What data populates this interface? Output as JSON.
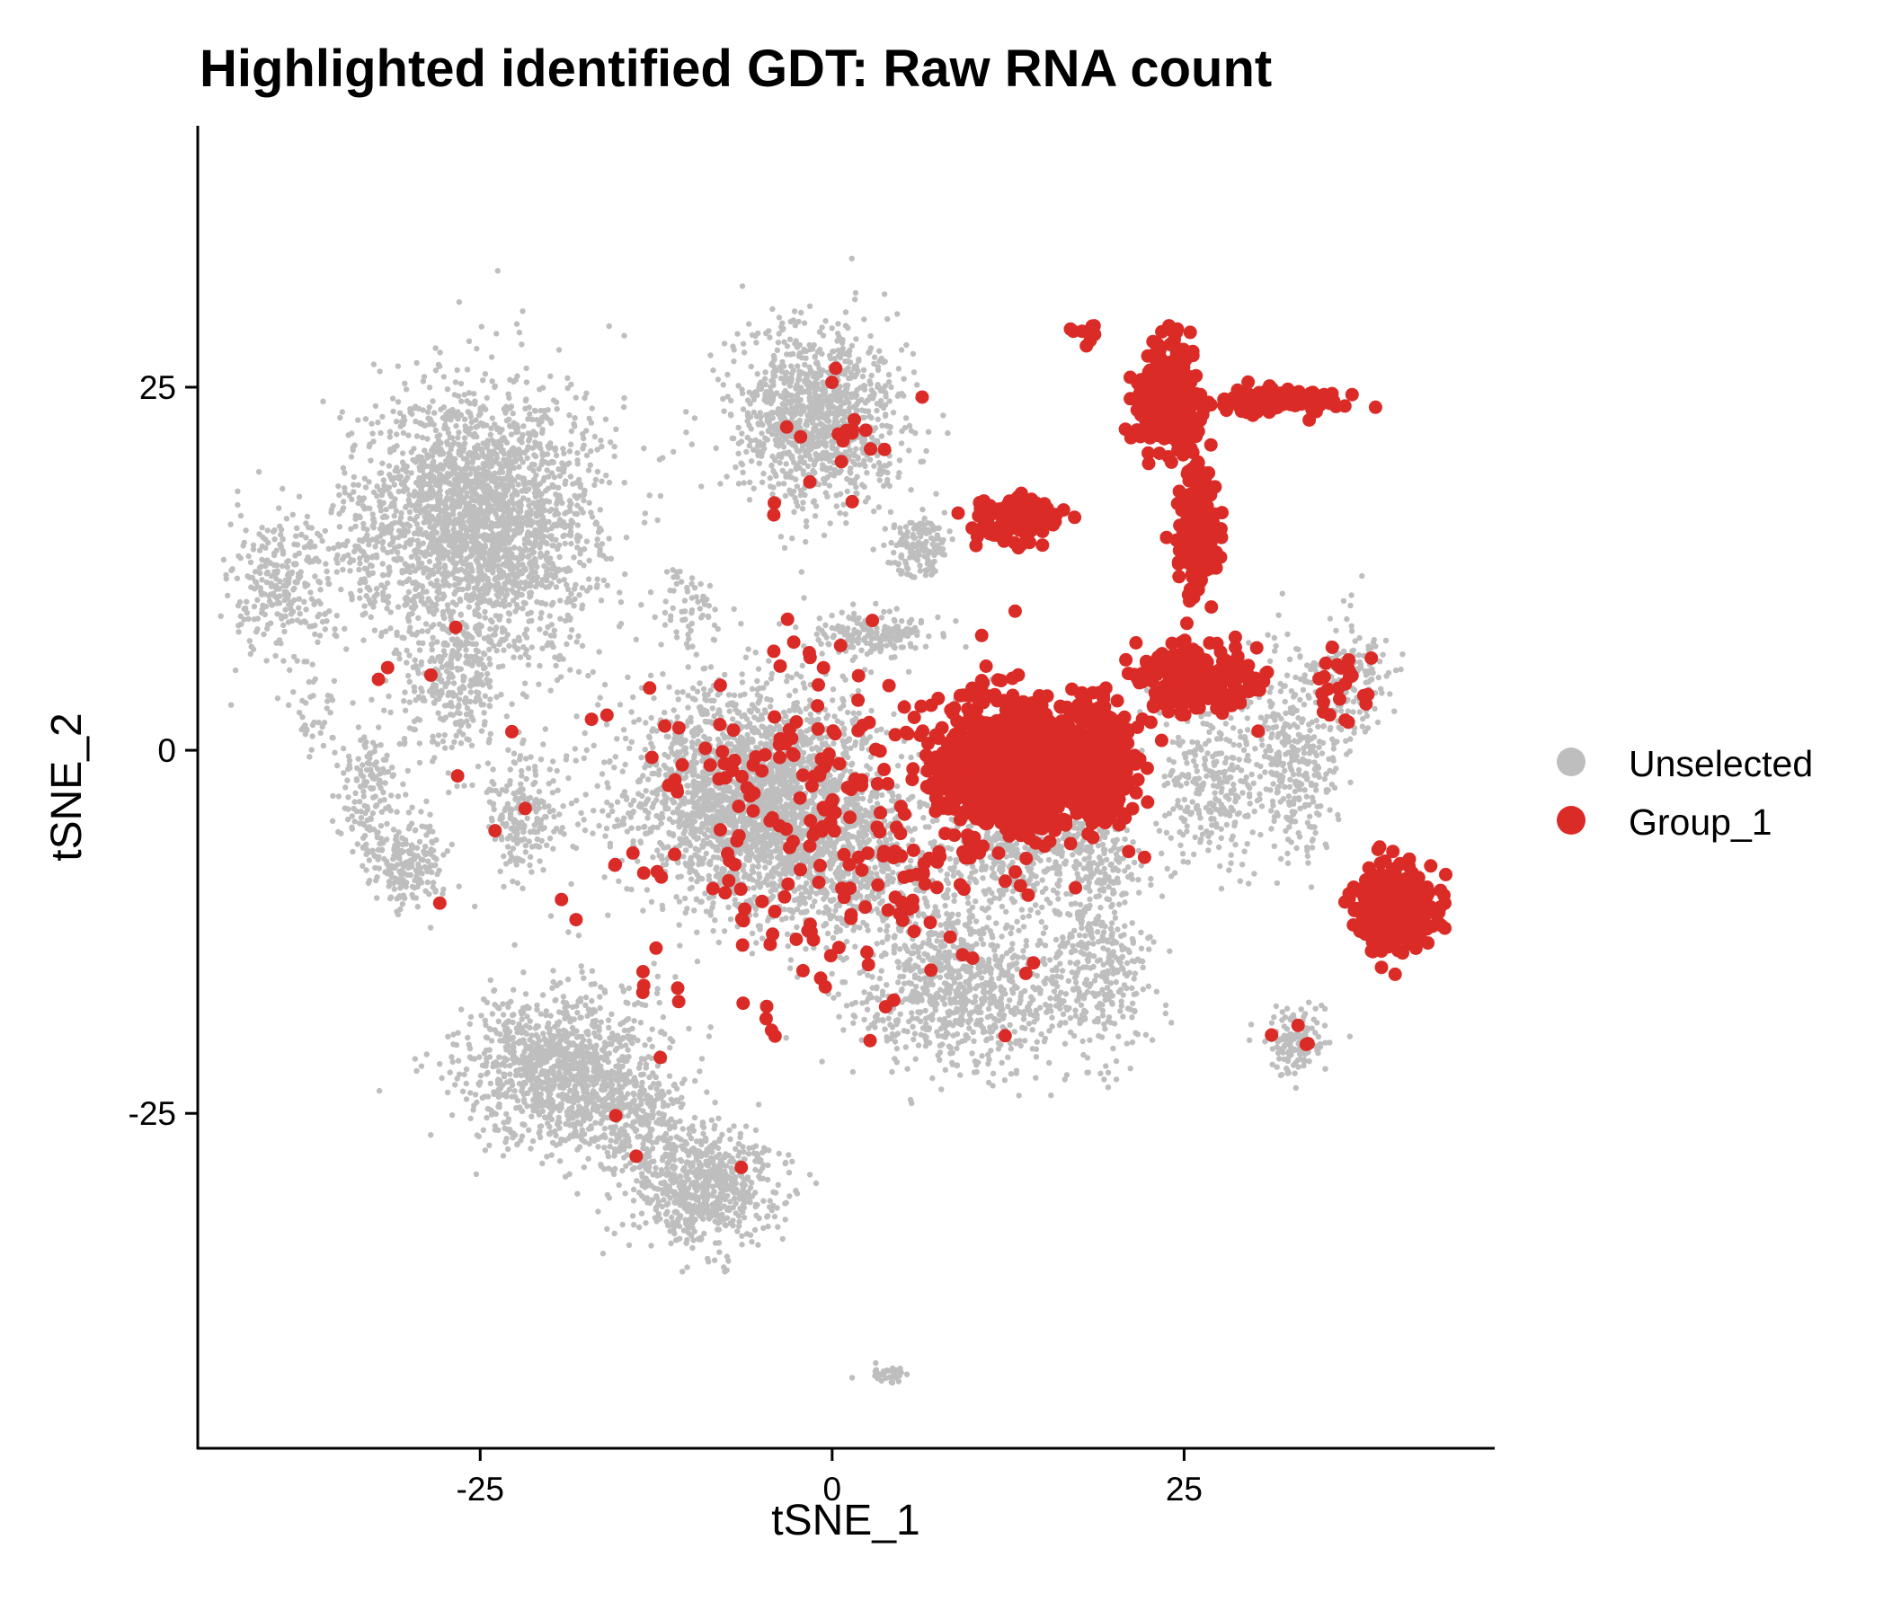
{
  "chart_data": {
    "type": "scatter",
    "title": "Highlighted identified GDT:  Raw RNA count",
    "xlabel": "tSNE_1",
    "ylabel": "tSNE_2",
    "xlim": [
      -45,
      47
    ],
    "ylim": [
      -48,
      43
    ],
    "x_ticks": [
      {
        "value": -25,
        "label": "-25"
      },
      {
        "value": 0,
        "label": "0"
      },
      {
        "value": 25,
        "label": "25"
      }
    ],
    "y_ticks": [
      {
        "value": -25,
        "label": "-25"
      },
      {
        "value": 0,
        "label": "0"
      },
      {
        "value": 25,
        "label": "25"
      }
    ],
    "grid": false,
    "legend_position": "right",
    "series": [
      {
        "name": "Unselected",
        "color": "#bebebe",
        "clusters": [
          {
            "cx": -39,
            "cy": 11,
            "sx": 2.5,
            "sy": 3.5,
            "n": 280
          },
          {
            "cx": -37,
            "cy": 2,
            "sx": 1.0,
            "sy": 1.8,
            "n": 40
          },
          {
            "cx": -25,
            "cy": 16,
            "sx": 5.5,
            "sy": 6.0,
            "n": 2400
          },
          {
            "cx": -27,
            "cy": 5,
            "sx": 2.5,
            "sy": 4.0,
            "n": 300
          },
          {
            "cx": -33,
            "cy": -3,
            "sx": 1.5,
            "sy": 3.0,
            "n": 150
          },
          {
            "cx": -30,
            "cy": -8,
            "sx": 1.8,
            "sy": 2.0,
            "n": 200
          },
          {
            "cx": -22,
            "cy": -4,
            "sx": 1.8,
            "sy": 3.0,
            "n": 200
          },
          {
            "cx": -33,
            "cy": 14,
            "sx": 1.5,
            "sy": 3.0,
            "n": 80
          },
          {
            "cx": -1,
            "cy": 23,
            "sx": 4.0,
            "sy": 4.0,
            "n": 1100
          },
          {
            "cx": 6,
            "cy": 14,
            "sx": 1.5,
            "sy": 1.5,
            "n": 150
          },
          {
            "cx": 3,
            "cy": 8,
            "sx": 3.0,
            "sy": 1.0,
            "n": 180
          },
          {
            "cx": -10,
            "cy": 10,
            "sx": 1.5,
            "sy": 2.0,
            "n": 60
          },
          {
            "cx": -6,
            "cy": -3,
            "sx": 6.0,
            "sy": 5.0,
            "n": 2200
          },
          {
            "cx": 0,
            "cy": -7,
            "sx": 5.0,
            "sy": 4.0,
            "n": 800
          },
          {
            "cx": 9,
            "cy": -16,
            "sx": 5.0,
            "sy": 4.0,
            "n": 900
          },
          {
            "cx": 19,
            "cy": -14,
            "sx": 2.5,
            "sy": 5.0,
            "n": 400
          },
          {
            "cx": 14,
            "cy": -6,
            "sx": 5.0,
            "sy": 3.0,
            "n": 600
          },
          {
            "cx": 27,
            "cy": -2,
            "sx": 2.5,
            "sy": 4.0,
            "n": 300
          },
          {
            "cx": 33,
            "cy": 0,
            "sx": 2.0,
            "sy": 5.0,
            "n": 350
          },
          {
            "cx": 37,
            "cy": 5,
            "sx": 2.0,
            "sy": 2.5,
            "n": 150
          },
          {
            "cx": 33,
            "cy": -20,
            "sx": 1.6,
            "sy": 1.5,
            "n": 150
          },
          {
            "cx": -19,
            "cy": -22,
            "sx": 4.5,
            "sy": 3.5,
            "n": 1200
          },
          {
            "cx": -9,
            "cy": -30,
            "sx": 3.5,
            "sy": 2.8,
            "n": 700
          },
          {
            "cx": -14,
            "cy": -26,
            "sx": 2.5,
            "sy": 2.5,
            "n": 200
          },
          {
            "cx": 4,
            "cy": -43,
            "sx": 1.3,
            "sy": 0.4,
            "n": 40
          }
        ]
      },
      {
        "name": "Group_1",
        "color": "#db2b27",
        "clusters": [
          {
            "cx": 13,
            "cy": -1,
            "sx": 3.5,
            "sy": 2.8,
            "n": 1000
          },
          {
            "cx": 19,
            "cy": -1,
            "sx": 2.0,
            "sy": 3.0,
            "n": 300
          },
          {
            "cx": 26,
            "cy": 5,
            "sx": 2.8,
            "sy": 1.5,
            "n": 220
          },
          {
            "cx": 24,
            "cy": 24,
            "sx": 1.5,
            "sy": 2.5,
            "n": 250
          },
          {
            "cx": 26,
            "cy": 15,
            "sx": 0.9,
            "sy": 3.0,
            "n": 200
          },
          {
            "cx": 31,
            "cy": 24,
            "sx": 3.0,
            "sy": 0.6,
            "n": 120
          },
          {
            "cx": 13,
            "cy": 16,
            "sx": 2.0,
            "sy": 1.0,
            "n": 120
          },
          {
            "cx": 40,
            "cy": -11,
            "sx": 1.8,
            "sy": 1.8,
            "n": 450
          },
          {
            "cx": 0,
            "cy": -5,
            "sx": 10.0,
            "sy": 9.0,
            "n": 260
          },
          {
            "cx": 18,
            "cy": 29,
            "sx": 1.0,
            "sy": 0.5,
            "n": 8
          },
          {
            "cx": 36,
            "cy": 5,
            "sx": 1.8,
            "sy": 2.0,
            "n": 25
          },
          {
            "cx": 33,
            "cy": -20,
            "sx": 1.5,
            "sy": 1.0,
            "n": 4
          },
          {
            "cx": -20,
            "cy": -2,
            "sx": 8.0,
            "sy": 10.0,
            "n": 14
          },
          {
            "cx": -14,
            "cy": -25,
            "sx": 2.5,
            "sy": 4.0,
            "n": 4
          },
          {
            "cx": 1,
            "cy": 22,
            "sx": 3.0,
            "sy": 3.5,
            "n": 18
          }
        ]
      }
    ]
  }
}
